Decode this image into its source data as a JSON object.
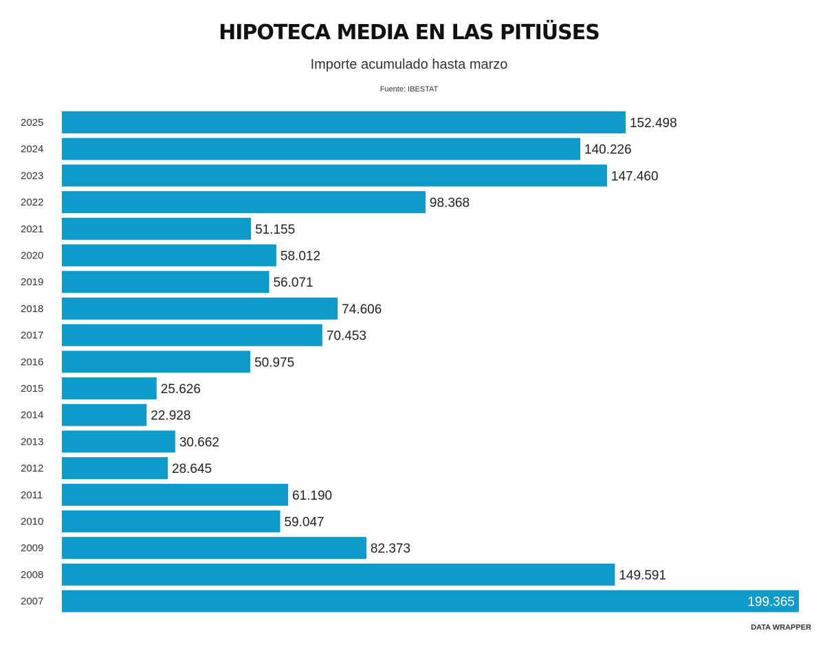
{
  "header": {
    "title": "HIPOTECA MEDIA EN LAS PITIÜSES",
    "subtitle": "Importe acumulado hasta marzo",
    "source": "Fuente: IBESTAT"
  },
  "footer": {
    "credit": "DATA WRAPPER"
  },
  "colors": {
    "bar": "#0f9bca",
    "label_inside": "#ffffff",
    "label_outside": "#222222"
  },
  "chart_data": {
    "type": "bar",
    "orientation": "horizontal",
    "title": "HIPOTECA MEDIA EN LAS PITIÜSES",
    "subtitle": "Importe acumulado hasta marzo",
    "categories": [
      "2025",
      "2024",
      "2023",
      "2022",
      "2021",
      "2020",
      "2019",
      "2018",
      "2017",
      "2016",
      "2015",
      "2014",
      "2013",
      "2012",
      "2011",
      "2010",
      "2009",
      "2008",
      "2007"
    ],
    "values": [
      152498,
      140226,
      147460,
      98368,
      51155,
      58012,
      56071,
      74606,
      70453,
      50975,
      25626,
      22928,
      30662,
      28645,
      61190,
      59047,
      82373,
      149591,
      199365
    ],
    "value_labels": [
      "152.498",
      "140.226",
      "147.460",
      "98.368",
      "51.155",
      "58.012",
      "56.071",
      "74.606",
      "70.453",
      "50.975",
      "25.626",
      "22.928",
      "30.662",
      "28.645",
      "61.190",
      "59.047",
      "82.373",
      "149.591",
      "199.365"
    ],
    "xlim": [
      0,
      199365
    ],
    "grid": false,
    "legend": "none"
  }
}
